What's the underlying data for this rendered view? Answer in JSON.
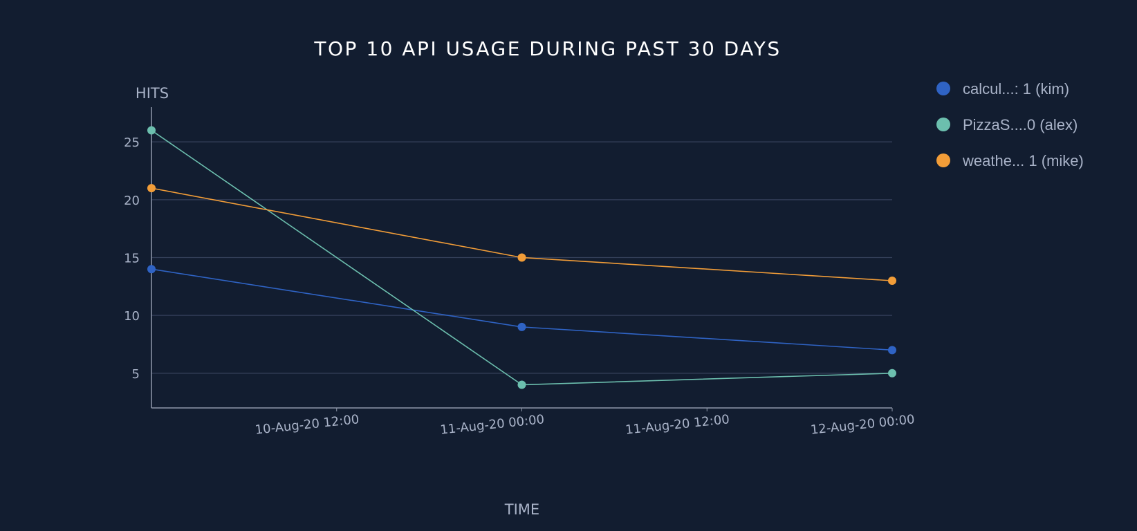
{
  "chart_data": {
    "type": "line",
    "title": "TOP 10 API USAGE DURING PAST 30 DAYS",
    "xlabel": "TIME",
    "ylabel": "HITS",
    "x": [
      "10-Aug-20 00:00",
      "11-Aug-20 00:00",
      "12-Aug-20 00:00"
    ],
    "x_ticks": [
      "10-Aug-20 12:00",
      "11-Aug-20 00:00",
      "11-Aug-20 12:00",
      "12-Aug-20 00:00"
    ],
    "y_ticks": [
      5,
      10,
      15,
      20,
      25
    ],
    "ylim": [
      2,
      28
    ],
    "grid": true,
    "legend_position": "top-right",
    "series": [
      {
        "name": "calcul...: 1 (kim)",
        "color": "#2f63c4",
        "values": [
          14,
          9,
          7
        ]
      },
      {
        "name": "PizzaS....0 (alex)",
        "color": "#6cbfae",
        "values": [
          26,
          4,
          5
        ]
      },
      {
        "name": "weathe... 1 (mike)",
        "color": "#f29d38",
        "values": [
          21,
          15,
          13
        ]
      }
    ]
  }
}
